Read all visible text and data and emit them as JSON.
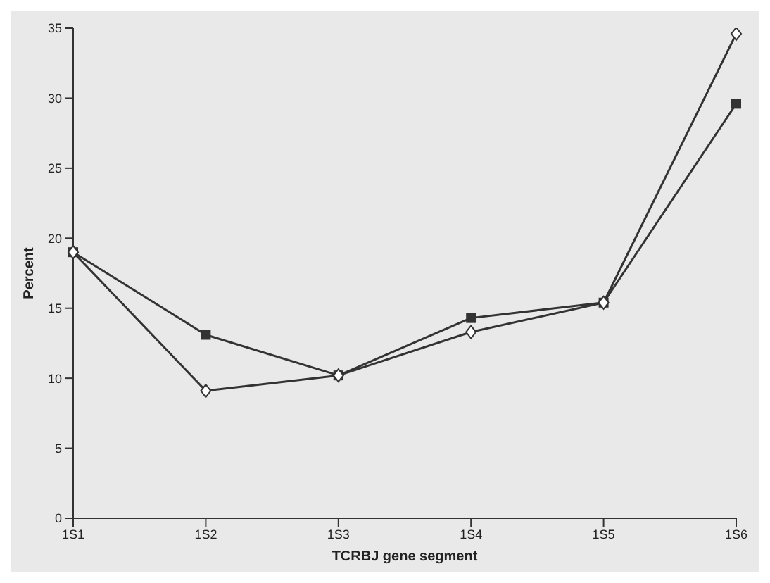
{
  "chart_data": {
    "type": "line",
    "xlabel": "TCRBJ gene segment",
    "ylabel": "Percent",
    "categories": [
      "1S1",
      "1S2",
      "1S3",
      "1S4",
      "1S5",
      "1S6"
    ],
    "series": [
      {
        "color": "#333333",
        "marker": "square",
        "values": [
          19,
          13.1,
          10.2,
          14.3,
          15.4,
          29.6
        ]
      },
      {
        "color": "#333333",
        "marker": "diamond",
        "values": [
          19,
          9.1,
          10.2,
          13.3,
          15.4,
          34.6
        ]
      }
    ],
    "ylim": [
      0,
      35
    ],
    "yticks": [
      0,
      5,
      10,
      15,
      20,
      25,
      30,
      35
    ],
    "grid": false,
    "line_style": "solid"
  }
}
